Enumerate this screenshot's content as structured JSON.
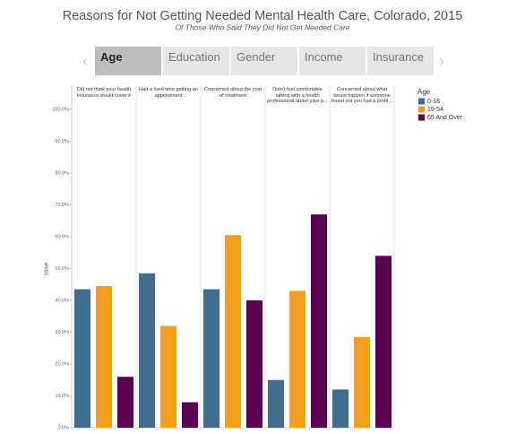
{
  "tabs": [
    "Age",
    "Education",
    "Gender",
    "Income",
    "Insurance"
  ],
  "active_tab": 0,
  "chart_data": {
    "type": "bar",
    "title": "Reasons for Not Getting Needed Mental Health Care, Colorado, 2015",
    "subtitle": "Of Those Who Said They Did Not Get Needed Care",
    "ylabel": "Value",
    "legend_title": "Age",
    "categories": [
      "Did not think your health insurance would cover it",
      "Had a hard time getting an appointment",
      "Concerned about the cost of treatment",
      "Didn't feel comfortable talking with a health professional about your p...",
      "Concerned about what would happen if someone found out you had a probl..."
    ],
    "series": [
      {
        "name": "0-18",
        "color": "#3e6d8e",
        "values": [
          43.5,
          48.5,
          43.5,
          15,
          12
        ]
      },
      {
        "name": "19-54",
        "color": "#f0a01e",
        "values": [
          44.5,
          32,
          60.5,
          43,
          28.5
        ]
      },
      {
        "name": "65 And Over",
        "color": "#5b0052",
        "values": [
          16,
          8,
          40,
          67,
          54
        ]
      }
    ],
    "ylim": [
      0,
      100
    ],
    "yticks": [
      {
        "value": 0,
        "label": "0.0%"
      },
      {
        "value": 10,
        "label": "10.0%"
      },
      {
        "value": 20,
        "label": "20.0%"
      },
      {
        "value": 30,
        "label": "30.0%"
      },
      {
        "value": 40,
        "label": "40.0%"
      },
      {
        "value": 50,
        "label": "50.0%"
      },
      {
        "value": 60,
        "label": "60.0%"
      },
      {
        "value": 70,
        "label": "70.0%"
      },
      {
        "value": 80,
        "label": "80.0%"
      },
      {
        "value": 90,
        "label": "90.0%"
      },
      {
        "value": 100,
        "label": "100.0%"
      }
    ]
  }
}
